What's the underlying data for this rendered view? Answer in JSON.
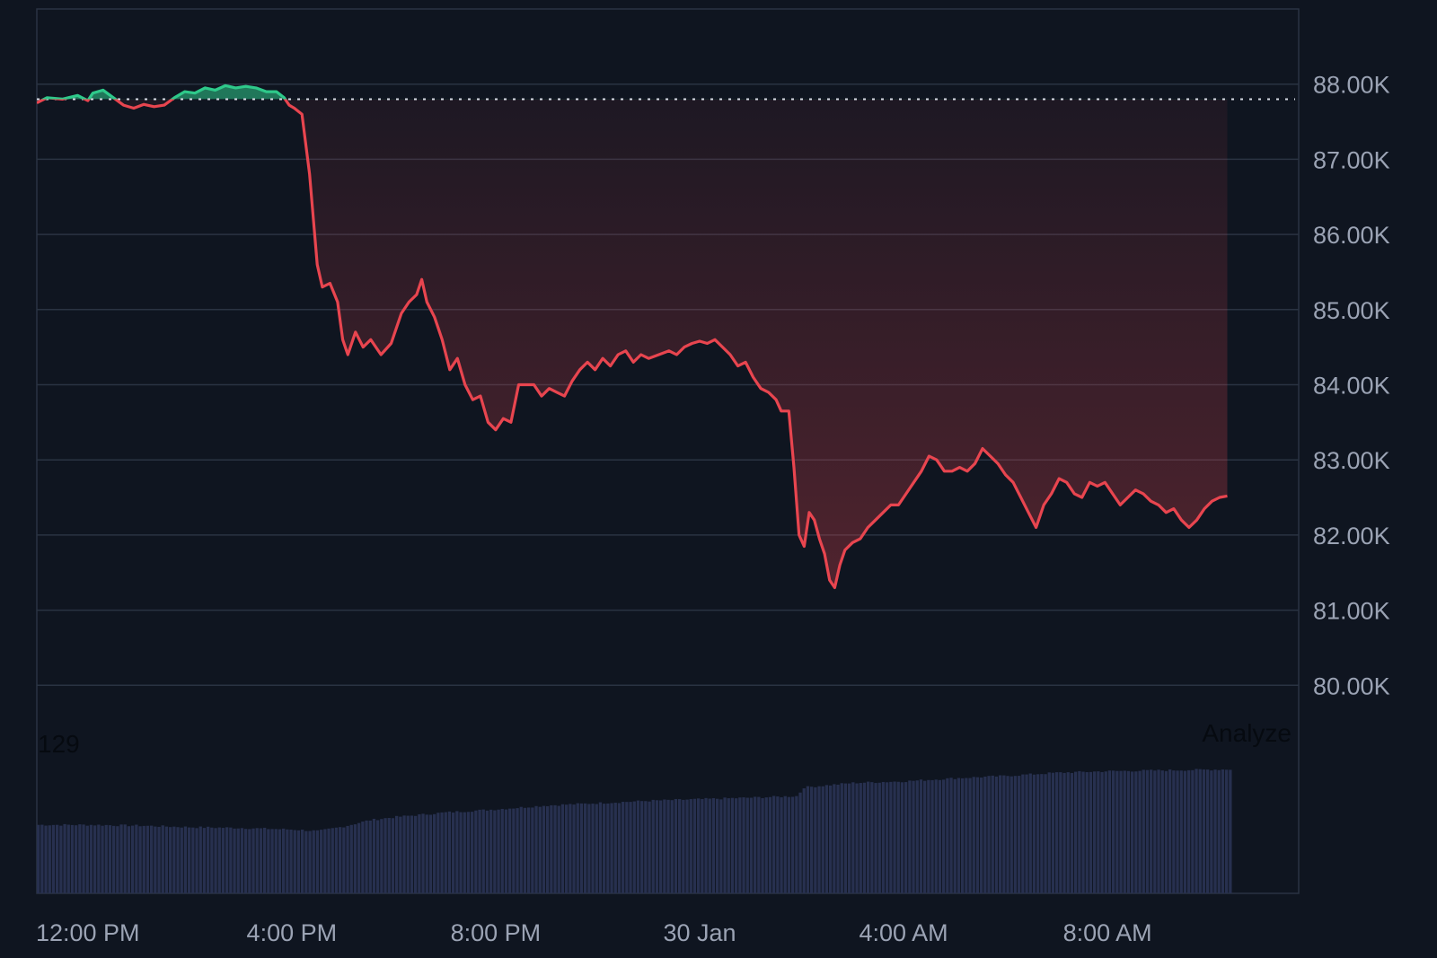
{
  "chart_data": {
    "type": "area",
    "baseline": 87.8,
    "colors": {
      "background": "#0f1520",
      "grid": "#2a3342",
      "up": "#2ec98a",
      "down": "#e8454f",
      "volume": "#27304f",
      "baseline": "#d8dde6"
    },
    "y_axis": {
      "range": [
        79.0,
        89.0
      ],
      "unit_suffix": "K",
      "ticks": [
        "88.00K",
        "87.00K",
        "86.00K",
        "85.00K",
        "84.00K",
        "83.00K",
        "82.00K",
        "81.00K",
        "80.00K"
      ],
      "tick_values": [
        88,
        87,
        86,
        85,
        84,
        83,
        82,
        81,
        80
      ]
    },
    "x_axis": {
      "range_hours": [
        0,
        24.75
      ],
      "ticks": [
        "12:00 PM",
        "4:00 PM",
        "8:00 PM",
        "30 Jan",
        "4:00 AM",
        "8:00 AM"
      ],
      "tick_hours": [
        1,
        5,
        9,
        13,
        17,
        21
      ]
    },
    "volume_label": "129",
    "analyze_label": "Analyze",
    "series": [
      {
        "points": [
          [
            0,
            87.75
          ],
          [
            0.2,
            87.82
          ],
          [
            0.5,
            87.8
          ],
          [
            0.8,
            87.85
          ],
          [
            1.0,
            87.78
          ],
          [
            1.1,
            87.88
          ],
          [
            1.3,
            87.92
          ],
          [
            1.5,
            87.82
          ],
          [
            1.7,
            87.72
          ],
          [
            1.9,
            87.68
          ],
          [
            2.1,
            87.73
          ],
          [
            2.3,
            87.7
          ],
          [
            2.5,
            87.72
          ],
          [
            2.7,
            87.82
          ],
          [
            2.9,
            87.9
          ],
          [
            3.1,
            87.88
          ],
          [
            3.3,
            87.95
          ],
          [
            3.5,
            87.92
          ],
          [
            3.7,
            87.98
          ],
          [
            3.9,
            87.95
          ],
          [
            4.1,
            87.97
          ],
          [
            4.3,
            87.95
          ],
          [
            4.5,
            87.9
          ],
          [
            4.7,
            87.9
          ],
          [
            4.85,
            87.82
          ],
          [
            4.95,
            87.72
          ],
          [
            5.05,
            87.68
          ],
          [
            5.2,
            87.6
          ],
          [
            5.35,
            86.8
          ],
          [
            5.5,
            85.6
          ],
          [
            5.6,
            85.3
          ],
          [
            5.75,
            85.35
          ],
          [
            5.9,
            85.1
          ],
          [
            6.0,
            84.6
          ],
          [
            6.1,
            84.4
          ],
          [
            6.25,
            84.7
          ],
          [
            6.4,
            84.5
          ],
          [
            6.55,
            84.6
          ],
          [
            6.75,
            84.4
          ],
          [
            6.95,
            84.55
          ],
          [
            7.15,
            84.95
          ],
          [
            7.3,
            85.1
          ],
          [
            7.45,
            85.2
          ],
          [
            7.55,
            85.4
          ],
          [
            7.65,
            85.1
          ],
          [
            7.8,
            84.9
          ],
          [
            7.95,
            84.6
          ],
          [
            8.1,
            84.2
          ],
          [
            8.25,
            84.35
          ],
          [
            8.4,
            84.0
          ],
          [
            8.55,
            83.8
          ],
          [
            8.7,
            83.85
          ],
          [
            8.85,
            83.5
          ],
          [
            9.0,
            83.4
          ],
          [
            9.15,
            83.55
          ],
          [
            9.3,
            83.5
          ],
          [
            9.45,
            84.0
          ],
          [
            9.6,
            84.0
          ],
          [
            9.75,
            84.0
          ],
          [
            9.9,
            83.85
          ],
          [
            10.05,
            83.95
          ],
          [
            10.2,
            83.9
          ],
          [
            10.35,
            83.85
          ],
          [
            10.5,
            84.05
          ],
          [
            10.65,
            84.2
          ],
          [
            10.8,
            84.3
          ],
          [
            10.95,
            84.2
          ],
          [
            11.1,
            84.35
          ],
          [
            11.25,
            84.25
          ],
          [
            11.4,
            84.4
          ],
          [
            11.55,
            84.45
          ],
          [
            11.7,
            84.3
          ],
          [
            11.85,
            84.4
          ],
          [
            12.0,
            84.35
          ],
          [
            12.2,
            84.4
          ],
          [
            12.4,
            84.45
          ],
          [
            12.55,
            84.4
          ],
          [
            12.7,
            84.5
          ],
          [
            12.85,
            84.55
          ],
          [
            13.0,
            84.58
          ],
          [
            13.15,
            84.55
          ],
          [
            13.3,
            84.6
          ],
          [
            13.45,
            84.5
          ],
          [
            13.6,
            84.4
          ],
          [
            13.75,
            84.25
          ],
          [
            13.9,
            84.3
          ],
          [
            14.05,
            84.1
          ],
          [
            14.2,
            83.95
          ],
          [
            14.35,
            83.9
          ],
          [
            14.5,
            83.8
          ],
          [
            14.6,
            83.65
          ],
          [
            14.75,
            83.65
          ],
          [
            14.85,
            82.9
          ],
          [
            14.95,
            82.0
          ],
          [
            15.05,
            81.85
          ],
          [
            15.15,
            82.3
          ],
          [
            15.25,
            82.2
          ],
          [
            15.35,
            81.95
          ],
          [
            15.45,
            81.75
          ],
          [
            15.55,
            81.4
          ],
          [
            15.65,
            81.3
          ],
          [
            15.75,
            81.6
          ],
          [
            15.85,
            81.8
          ],
          [
            16.0,
            81.9
          ],
          [
            16.15,
            81.95
          ],
          [
            16.3,
            82.1
          ],
          [
            16.45,
            82.2
          ],
          [
            16.6,
            82.3
          ],
          [
            16.75,
            82.4
          ],
          [
            16.9,
            82.4
          ],
          [
            17.05,
            82.55
          ],
          [
            17.2,
            82.7
          ],
          [
            17.35,
            82.85
          ],
          [
            17.5,
            83.05
          ],
          [
            17.65,
            83.0
          ],
          [
            17.8,
            82.85
          ],
          [
            17.95,
            82.85
          ],
          [
            18.1,
            82.9
          ],
          [
            18.25,
            82.85
          ],
          [
            18.4,
            82.95
          ],
          [
            18.55,
            83.15
          ],
          [
            18.7,
            83.05
          ],
          [
            18.85,
            82.95
          ],
          [
            19.0,
            82.8
          ],
          [
            19.15,
            82.7
          ],
          [
            19.3,
            82.5
          ],
          [
            19.45,
            82.3
          ],
          [
            19.6,
            82.1
          ],
          [
            19.75,
            82.4
          ],
          [
            19.9,
            82.55
          ],
          [
            20.05,
            82.75
          ],
          [
            20.2,
            82.7
          ],
          [
            20.35,
            82.55
          ],
          [
            20.5,
            82.5
          ],
          [
            20.65,
            82.7
          ],
          [
            20.8,
            82.65
          ],
          [
            20.95,
            82.7
          ],
          [
            21.1,
            82.55
          ],
          [
            21.25,
            82.4
          ],
          [
            21.4,
            82.5
          ],
          [
            21.55,
            82.6
          ],
          [
            21.7,
            82.55
          ],
          [
            21.85,
            82.45
          ],
          [
            22.0,
            82.4
          ],
          [
            22.15,
            82.3
          ],
          [
            22.3,
            82.35
          ],
          [
            22.45,
            82.2
          ],
          [
            22.6,
            82.1
          ],
          [
            22.75,
            82.2
          ],
          [
            22.9,
            82.35
          ],
          [
            23.05,
            82.45
          ],
          [
            23.2,
            82.5
          ],
          [
            23.35,
            82.52
          ]
        ]
      }
    ],
    "volume": {
      "range": [
        0,
        160
      ],
      "points": [
        [
          0,
          88
        ],
        [
          1,
          88
        ],
        [
          2,
          87
        ],
        [
          3,
          85
        ],
        [
          4,
          84
        ],
        [
          5,
          82
        ],
        [
          5.5,
          80
        ],
        [
          6,
          86
        ],
        [
          6.5,
          94
        ],
        [
          7,
          98
        ],
        [
          8,
          104
        ],
        [
          9,
          108
        ],
        [
          10,
          113
        ],
        [
          11,
          116
        ],
        [
          12,
          119
        ],
        [
          13,
          121
        ],
        [
          14,
          123
        ],
        [
          14.9,
          125
        ],
        [
          15,
          136
        ],
        [
          16,
          142
        ],
        [
          17,
          144
        ],
        [
          18,
          148
        ],
        [
          19,
          151
        ],
        [
          20,
          155
        ],
        [
          21,
          157
        ],
        [
          22,
          158
        ],
        [
          23,
          159
        ],
        [
          24,
          160
        ]
      ]
    }
  }
}
